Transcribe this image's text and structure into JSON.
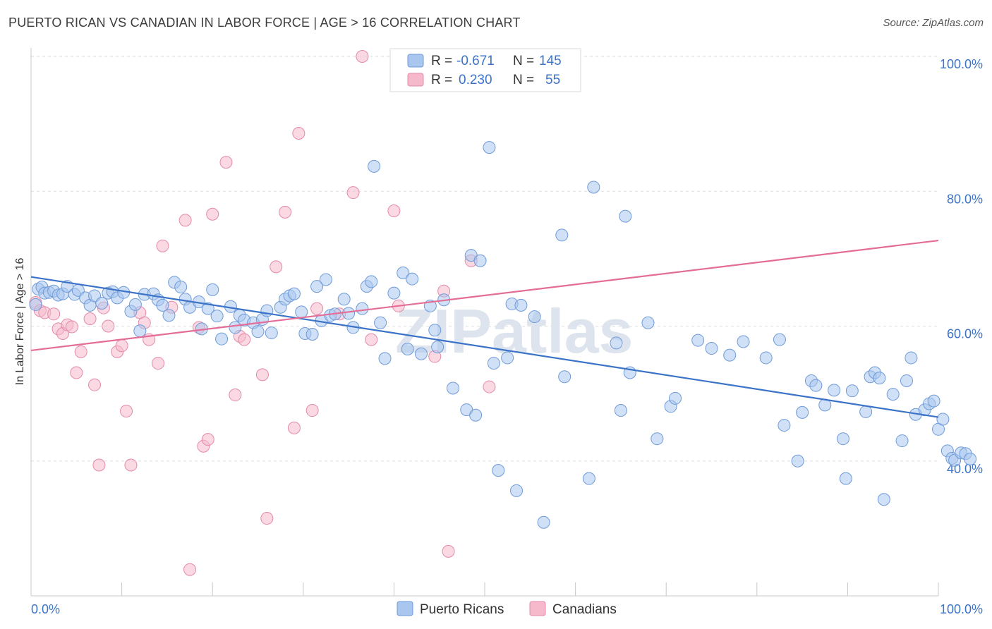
{
  "title": "PUERTO RICAN VS CANADIAN IN LABOR FORCE | AGE > 16 CORRELATION CHART",
  "source": "Source: ZipAtlas.com",
  "watermark": "ZIPatlas",
  "colors": {
    "blue": "#3b73c8",
    "blue_fill": "#a9c6ee",
    "pink": "#e46d97",
    "pink_fill": "#f6b9cc"
  },
  "chart_data": {
    "type": "scatter",
    "ylabel": "In Labor Force | Age > 16",
    "xlim": [
      0,
      100
    ],
    "ylim": [
      20,
      100
    ],
    "x_tick_labels": [
      {
        "value": 0,
        "label": "0.0%"
      },
      {
        "value": 100,
        "label": "100.0%"
      }
    ],
    "y_tick_labels": [
      {
        "value": 40,
        "label": "40.0%"
      },
      {
        "value": 60,
        "label": "60.0%"
      },
      {
        "value": 80,
        "label": "80.0%"
      },
      {
        "value": 100,
        "label": "100.0%"
      }
    ],
    "grid": true,
    "legend_position": "top-center",
    "stats": [
      {
        "r_label": "R =",
        "r": "-0.671",
        "n_label": "N =",
        "n": "145"
      },
      {
        "r_label": "R =",
        "r": "0.230",
        "n_label": "N =",
        "n": "55"
      }
    ],
    "series": [
      {
        "name": "Puerto Ricans",
        "trend": {
          "x": [
            0,
            100
          ],
          "y": [
            67.3,
            46.5
          ]
        },
        "points": [
          [
            0.5,
            63.2
          ],
          [
            0.8,
            65.5
          ],
          [
            1.2,
            65.8
          ],
          [
            1.5,
            64.9
          ],
          [
            2.0,
            65.0
          ],
          [
            2.5,
            65.2
          ],
          [
            3.0,
            64.6
          ],
          [
            3.5,
            64.8
          ],
          [
            4.0,
            65.9
          ],
          [
            4.8,
            64.7
          ],
          [
            5.2,
            65.3
          ],
          [
            6.0,
            64.2
          ],
          [
            6.5,
            63.1
          ],
          [
            7.0,
            64.5
          ],
          [
            7.8,
            63.4
          ],
          [
            8.5,
            64.9
          ],
          [
            9.0,
            65.1
          ],
          [
            9.5,
            64.2
          ],
          [
            10.2,
            65.0
          ],
          [
            11.0,
            62.2
          ],
          [
            11.5,
            63.2
          ],
          [
            12.0,
            59.3
          ],
          [
            12.5,
            64.7
          ],
          [
            13.5,
            64.8
          ],
          [
            14.0,
            63.9
          ],
          [
            14.5,
            63.1
          ],
          [
            15.2,
            61.6
          ],
          [
            15.8,
            66.5
          ],
          [
            16.5,
            65.8
          ],
          [
            17.0,
            64.0
          ],
          [
            17.5,
            62.8
          ],
          [
            18.5,
            63.6
          ],
          [
            18.8,
            59.6
          ],
          [
            19.5,
            62.6
          ],
          [
            20.0,
            65.4
          ],
          [
            20.5,
            61.5
          ],
          [
            21.0,
            58.1
          ],
          [
            22.0,
            62.9
          ],
          [
            22.5,
            59.8
          ],
          [
            23.0,
            61.6
          ],
          [
            23.5,
            60.9
          ],
          [
            24.5,
            60.5
          ],
          [
            25.0,
            59.2
          ],
          [
            25.5,
            61.0
          ],
          [
            26.0,
            62.3
          ],
          [
            26.5,
            59.0
          ],
          [
            27.5,
            62.8
          ],
          [
            28.0,
            64.0
          ],
          [
            28.5,
            64.5
          ],
          [
            29.0,
            64.8
          ],
          [
            29.8,
            62.1
          ],
          [
            30.2,
            58.9
          ],
          [
            31.0,
            58.8
          ],
          [
            31.5,
            65.9
          ],
          [
            32.0,
            60.8
          ],
          [
            32.5,
            66.9
          ],
          [
            33.0,
            61.6
          ],
          [
            33.5,
            61.8
          ],
          [
            34.5,
            64.0
          ],
          [
            35.0,
            61.9
          ],
          [
            35.5,
            59.8
          ],
          [
            36.5,
            62.6
          ],
          [
            37.0,
            65.9
          ],
          [
            37.5,
            66.6
          ],
          [
            37.8,
            83.7
          ],
          [
            38.5,
            60.5
          ],
          [
            39.0,
            55.2
          ],
          [
            40.0,
            64.9
          ],
          [
            41.0,
            67.9
          ],
          [
            41.5,
            56.6
          ],
          [
            42.0,
            67.0
          ],
          [
            43.0,
            55.9
          ],
          [
            44.0,
            63.0
          ],
          [
            44.5,
            59.4
          ],
          [
            44.8,
            56.9
          ],
          [
            45.5,
            63.9
          ],
          [
            46.5,
            50.8
          ],
          [
            48.0,
            47.6
          ],
          [
            48.5,
            70.5
          ],
          [
            49.0,
            46.8
          ],
          [
            49.5,
            69.7
          ],
          [
            50.5,
            86.5
          ],
          [
            51.0,
            54.5
          ],
          [
            51.5,
            38.6
          ],
          [
            52.5,
            55.3
          ],
          [
            53.0,
            63.3
          ],
          [
            53.5,
            35.6
          ],
          [
            54.0,
            63.1
          ],
          [
            55.5,
            61.4
          ],
          [
            56.5,
            30.9
          ],
          [
            58.5,
            73.5
          ],
          [
            58.8,
            52.5
          ],
          [
            61.5,
            37.4
          ],
          [
            62.0,
            80.6
          ],
          [
            64.5,
            57.5
          ],
          [
            65.0,
            47.5
          ],
          [
            65.5,
            76.3
          ],
          [
            66.0,
            53.1
          ],
          [
            68.0,
            60.5
          ],
          [
            69.0,
            43.3
          ],
          [
            70.5,
            48.1
          ],
          [
            71.0,
            49.3
          ],
          [
            73.5,
            57.9
          ],
          [
            75.0,
            56.7
          ],
          [
            77.0,
            55.7
          ],
          [
            78.5,
            57.7
          ],
          [
            81.0,
            55.3
          ],
          [
            82.5,
            58.0
          ],
          [
            83.0,
            45.3
          ],
          [
            84.5,
            40.0
          ],
          [
            85.0,
            47.2
          ],
          [
            86.0,
            51.9
          ],
          [
            86.5,
            51.2
          ],
          [
            87.5,
            48.3
          ],
          [
            88.5,
            50.5
          ],
          [
            89.5,
            43.3
          ],
          [
            89.8,
            37.4
          ],
          [
            90.5,
            50.4
          ],
          [
            92.0,
            47.3
          ],
          [
            92.5,
            52.5
          ],
          [
            93.0,
            53.1
          ],
          [
            93.5,
            52.3
          ],
          [
            94.0,
            34.3
          ],
          [
            95.0,
            49.9
          ],
          [
            96.0,
            43.0
          ],
          [
            96.5,
            51.9
          ],
          [
            97.0,
            55.3
          ],
          [
            97.5,
            46.9
          ],
          [
            98.5,
            47.6
          ],
          [
            99.0,
            48.5
          ],
          [
            99.5,
            48.9
          ],
          [
            100.0,
            44.7
          ],
          [
            100.5,
            46.2
          ],
          [
            101.0,
            41.5
          ],
          [
            101.5,
            40.4
          ],
          [
            101.8,
            40.1
          ],
          [
            102.5,
            41.2
          ],
          [
            103.0,
            41.1
          ],
          [
            103.5,
            40.3
          ]
        ]
      },
      {
        "name": "Canadians",
        "trend": {
          "x": [
            0,
            100
          ],
          "y": [
            56.4,
            72.7
          ]
        },
        "points": [
          [
            0.5,
            63.5
          ],
          [
            1.0,
            62.3
          ],
          [
            1.5,
            62.0
          ],
          [
            2.5,
            61.8
          ],
          [
            3.0,
            59.6
          ],
          [
            3.5,
            58.9
          ],
          [
            4.0,
            60.2
          ],
          [
            4.5,
            59.9
          ],
          [
            5.0,
            53.1
          ],
          [
            5.5,
            56.2
          ],
          [
            6.5,
            61.1
          ],
          [
            7.0,
            51.3
          ],
          [
            7.5,
            39.4
          ],
          [
            8.0,
            62.7
          ],
          [
            8.5,
            60.0
          ],
          [
            9.5,
            56.2
          ],
          [
            10.0,
            57.1
          ],
          [
            10.5,
            47.4
          ],
          [
            11.0,
            39.4
          ],
          [
            12.0,
            62.0
          ],
          [
            12.5,
            60.5
          ],
          [
            13.0,
            58.0
          ],
          [
            14.0,
            54.5
          ],
          [
            14.5,
            71.9
          ],
          [
            15.5,
            62.8
          ],
          [
            17.0,
            75.7
          ],
          [
            17.5,
            23.9
          ],
          [
            18.5,
            59.8
          ],
          [
            19.0,
            42.2
          ],
          [
            19.5,
            43.2
          ],
          [
            20.0,
            76.6
          ],
          [
            21.5,
            84.3
          ],
          [
            22.5,
            49.8
          ],
          [
            23.0,
            58.5
          ],
          [
            23.5,
            58.0
          ],
          [
            25.5,
            52.8
          ],
          [
            26.0,
            31.5
          ],
          [
            27.0,
            68.8
          ],
          [
            28.0,
            76.9
          ],
          [
            29.0,
            44.9
          ],
          [
            29.5,
            88.6
          ],
          [
            31.0,
            47.5
          ],
          [
            31.5,
            62.6
          ],
          [
            34.0,
            61.8
          ],
          [
            35.5,
            79.8
          ],
          [
            36.5,
            100.0
          ],
          [
            37.5,
            58.0
          ],
          [
            40.0,
            77.1
          ],
          [
            40.5,
            63.0
          ],
          [
            44.5,
            55.5
          ],
          [
            45.5,
            65.2
          ],
          [
            46.0,
            26.6
          ],
          [
            48.5,
            69.7
          ],
          [
            50.5,
            51.0
          ],
          [
            51.0,
            100.0
          ]
        ]
      }
    ]
  }
}
